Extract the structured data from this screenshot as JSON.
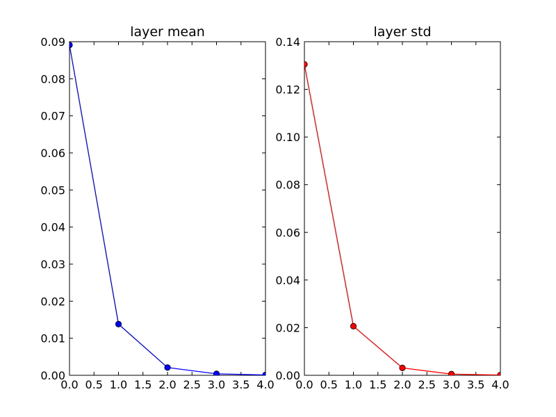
{
  "chart_data": [
    {
      "type": "line",
      "title": "layer mean",
      "xlabel": "",
      "ylabel": "",
      "x": [
        0,
        1,
        2,
        3,
        4
      ],
      "series": [
        {
          "color": "#0000ff",
          "marker": "circle",
          "values": [
            0.0891,
            0.0138,
            0.0021,
            0.0004,
            0.0001
          ]
        }
      ],
      "xlim": [
        0,
        4
      ],
      "ylim": [
        0,
        0.09
      ],
      "xticks": [
        "0.0",
        "0.5",
        "1.0",
        "1.5",
        "2.0",
        "2.5",
        "3.0",
        "3.5",
        "4.0"
      ],
      "yticks": [
        "0.00",
        "0.01",
        "0.02",
        "0.03",
        "0.04",
        "0.05",
        "0.06",
        "0.07",
        "0.08",
        "0.09"
      ],
      "grid": false,
      "legend": "none"
    },
    {
      "type": "line",
      "title": "layer std",
      "xlabel": "",
      "ylabel": "",
      "x": [
        0,
        1,
        2,
        3,
        4
      ],
      "series": [
        {
          "color": "#ff0000",
          "marker": "circle",
          "values": [
            0.1305,
            0.0206,
            0.0031,
            0.0005,
            0.0001
          ]
        }
      ],
      "xlim": [
        0,
        4
      ],
      "ylim": [
        0,
        0.14
      ],
      "xticks": [
        "0.0",
        "0.5",
        "1.0",
        "1.5",
        "2.0",
        "2.5",
        "3.0",
        "3.5",
        "4.0"
      ],
      "yticks": [
        "0.00",
        "0.02",
        "0.04",
        "0.06",
        "0.08",
        "0.10",
        "0.12",
        "0.14"
      ],
      "grid": false,
      "legend": "none"
    }
  ]
}
